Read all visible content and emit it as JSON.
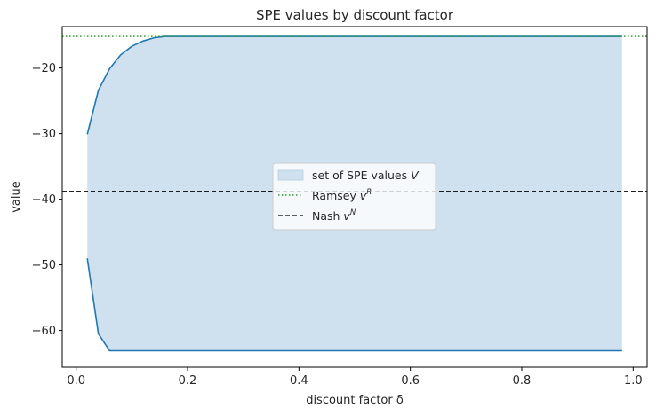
{
  "chart_data": {
    "type": "area",
    "title": "SPE values by discount factor",
    "xlabel": "discount factor δ",
    "ylabel": "value",
    "xlim": [
      -0.025,
      1.025
    ],
    "ylim": [
      -65.6,
      -13.7
    ],
    "xticks": [
      0.0,
      0.2,
      0.4,
      0.6,
      0.8,
      1.0
    ],
    "xtick_labels": [
      "0.0",
      "0.2",
      "0.4",
      "0.6",
      "0.8",
      "1.0"
    ],
    "yticks": [
      -20,
      -30,
      -40,
      -50,
      -60
    ],
    "ytick_labels": [
      "−20",
      "−30",
      "−40",
      "−50",
      "−60"
    ],
    "grid": false,
    "legend_position": "center",
    "x": [
      0.02,
      0.04,
      0.06,
      0.08,
      0.1,
      0.12,
      0.14,
      0.16,
      0.18,
      0.2,
      0.3,
      0.4,
      0.5,
      0.6,
      0.7,
      0.8,
      0.9,
      0.98
    ],
    "series": [
      {
        "name": "set of SPE values V",
        "kind": "band",
        "upper": [
          -30.1,
          -23.4,
          -20.1,
          -18.0,
          -16.7,
          -15.9,
          -15.4,
          -15.2,
          -15.2,
          -15.2,
          -15.2,
          -15.2,
          -15.2,
          -15.2,
          -15.2,
          -15.2,
          -15.2,
          -15.2
        ],
        "lower": [
          -49.0,
          -60.5,
          -63.1,
          -63.1,
          -63.1,
          -63.1,
          -63.1,
          -63.1,
          -63.1,
          -63.1,
          -63.1,
          -63.1,
          -63.1,
          -63.1,
          -63.1,
          -63.1,
          -63.1,
          -63.1
        ],
        "fill_color": "#cfe1ef",
        "edge_color": "#1f77b4"
      },
      {
        "name": "Ramsey v^R",
        "kind": "hline",
        "y": -15.2,
        "color": "#2ca02c",
        "style": "dotted"
      },
      {
        "name": "Nash v^N",
        "kind": "hline",
        "y": -38.8,
        "color": "#000000",
        "style": "dashed"
      }
    ],
    "legend": {
      "items": [
        {
          "text": "set of SPE values ",
          "math": "V",
          "sup": ""
        },
        {
          "text": "Ramsey ",
          "math": "v",
          "sup": "R"
        },
        {
          "text": "Nash ",
          "math": "v",
          "sup": "N"
        }
      ]
    }
  }
}
